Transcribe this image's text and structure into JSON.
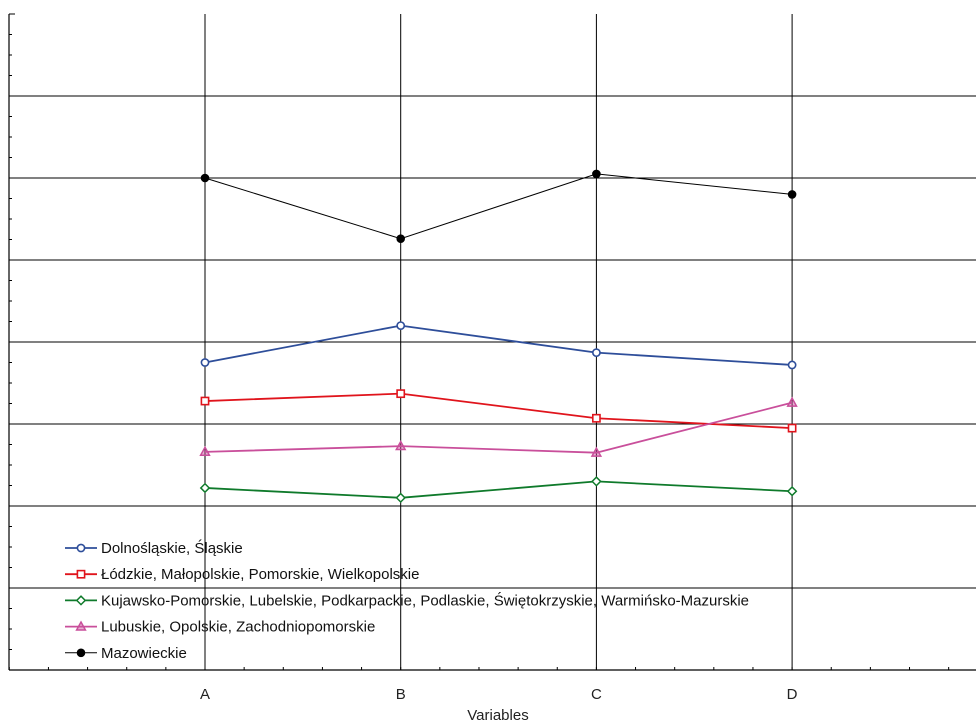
{
  "chart_data": {
    "type": "line",
    "title": "",
    "xlabel": "Variables",
    "ylabel": "",
    "categories": [
      "A",
      "B",
      "C",
      "D"
    ],
    "ylim": [
      0,
      8
    ],
    "grid": true,
    "legend_position": "bottom-left",
    "series": [
      {
        "name": "Dolnośląskie, Śląskie",
        "color": "#2e4e9a",
        "marker": "circle-open",
        "values": [
          3.75,
          4.2,
          3.87,
          3.72
        ]
      },
      {
        "name": "Łódzkie, Małopolskie, Pomorskie, Wielkopolskie",
        "color": "#e0141c",
        "marker": "square-open",
        "values": [
          3.28,
          3.37,
          3.07,
          2.95
        ]
      },
      {
        "name": "Kujawsko-Pomorskie, Lubelskie, Podkarpackie, Podlaskie, Świętokrzyskie, Warmińsko-Mazurskie",
        "color": "#0f7a2b",
        "marker": "diamond-open",
        "values": [
          2.22,
          2.1,
          2.3,
          2.18
        ]
      },
      {
        "name": "Lubuskie, Opolskie, Zachodniopomorskie",
        "color": "#c94f9b",
        "marker": "triangle-open",
        "values": [
          2.66,
          2.73,
          2.65,
          3.26
        ]
      },
      {
        "name": "Mazowieckie",
        "color": "#000000",
        "marker": "circle-filled",
        "values": [
          6.0,
          5.26,
          6.05,
          5.8
        ]
      }
    ]
  }
}
